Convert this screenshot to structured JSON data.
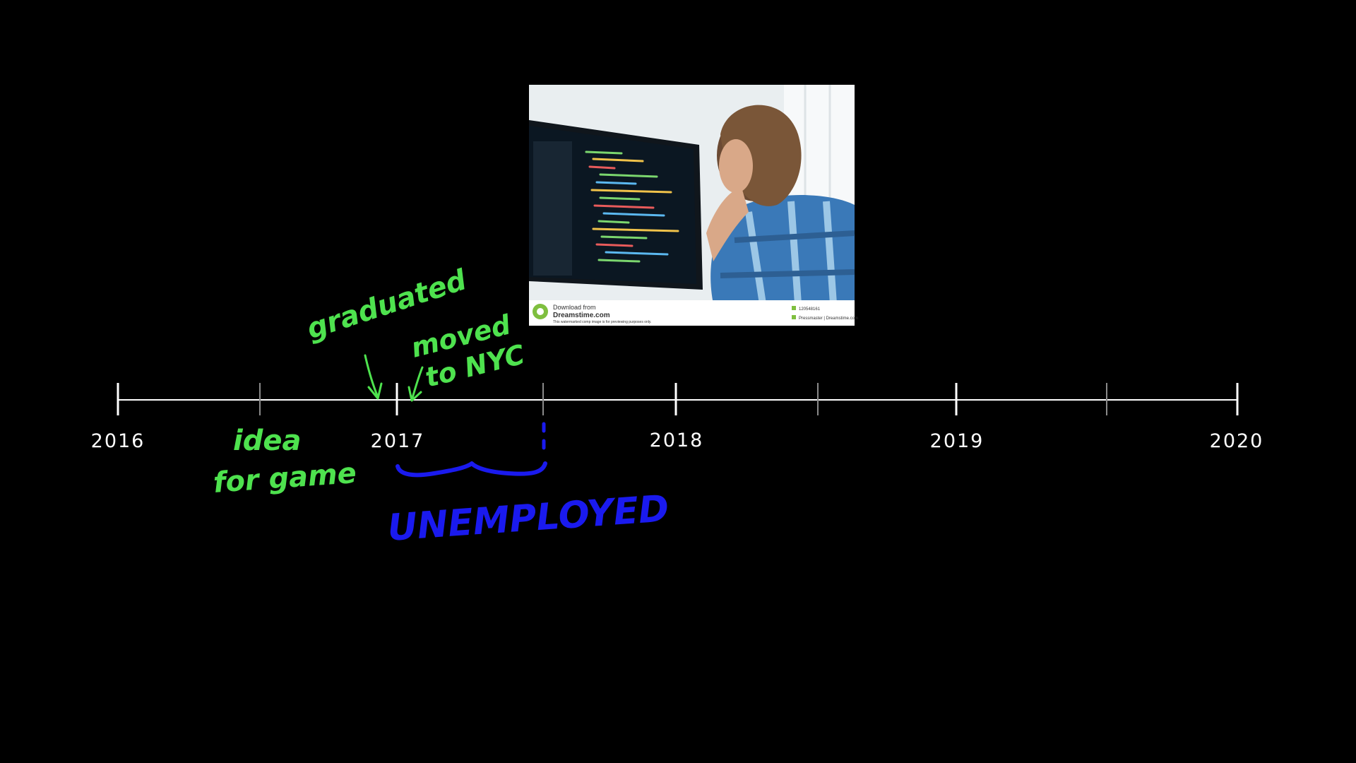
{
  "timeline": {
    "years": [
      "2016",
      "2017",
      "2018",
      "2019",
      "2020"
    ]
  },
  "annotations": {
    "graduated": "graduated",
    "moved_line1": "moved",
    "moved_line2": "to NYC",
    "idea_line1": "idea",
    "idea_line2": "for game",
    "unemployed": "UNEMPLOYED"
  },
  "photo": {
    "caption_line1": "Download from",
    "caption_line2": "Dreamstime.com",
    "caption_line3": "This watermarked comp image is for previewing purposes only.",
    "image_id": "120548161",
    "credit": "Pressmaster | Dreamstime.com"
  },
  "colors": {
    "background": "#000000",
    "timeline": "#ffffff",
    "annotation_green": "#4ee24e",
    "annotation_blue": "#1a1aee"
  }
}
